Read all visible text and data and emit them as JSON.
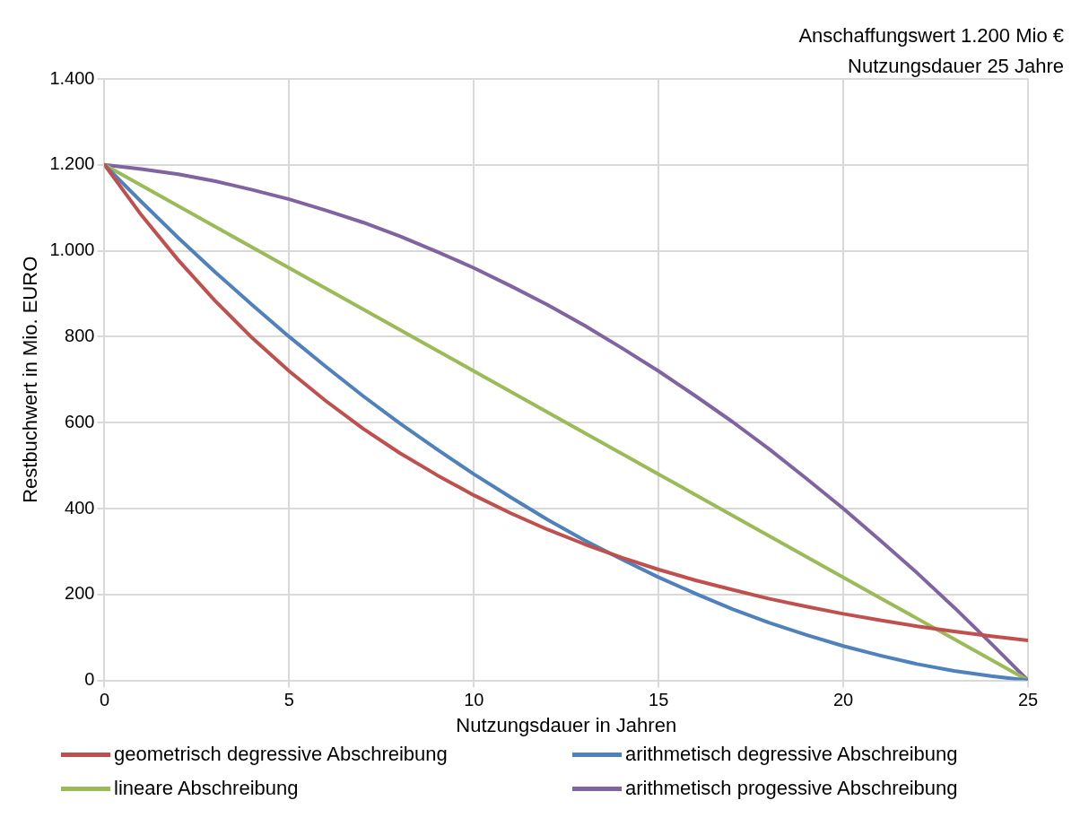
{
  "chart_data": {
    "type": "line",
    "xlabel": "Nutzungsdauer in Jahren",
    "ylabel": "Restbuchwert in Mio. EURO",
    "annotations": [
      "Anschaffungswert 1.200 Mio €",
      "Nutzungsdauer 25 Jahre"
    ],
    "x": [
      0,
      1,
      2,
      3,
      4,
      5,
      6,
      7,
      8,
      9,
      10,
      11,
      12,
      13,
      14,
      15,
      16,
      17,
      18,
      19,
      20,
      21,
      22,
      23,
      24,
      25
    ],
    "series": [
      {
        "name": "geometrisch degressive Abschreibung",
        "color": "#c0504d",
        "values": [
          1200,
          1083,
          978,
          883,
          797,
          720,
          650,
          586,
          529,
          478,
          431,
          389,
          351,
          317,
          286,
          258,
          233,
          211,
          190,
          172,
          155,
          140,
          126,
          114,
          103,
          93
        ]
      },
      {
        "name": "arithmetisch degressive Abschreibung",
        "color": "#4f81bd",
        "values": [
          1200,
          1114,
          1030,
          950,
          874,
          800,
          730,
          662,
          598,
          538,
          480,
          426,
          374,
          326,
          282,
          240,
          202,
          166,
          134,
          106,
          80,
          58,
          38,
          22,
          10,
          0
        ]
      },
      {
        "name": "lineare Abschreibung",
        "color": "#9bbb59",
        "values": [
          1200,
          1152,
          1104,
          1056,
          1008,
          960,
          912,
          864,
          816,
          768,
          720,
          672,
          624,
          576,
          528,
          480,
          432,
          384,
          336,
          288,
          240,
          192,
          144,
          96,
          48,
          0
        ]
      },
      {
        "name": "arithmetisch progessive Abschreibung",
        "color": "#8064a2",
        "values": [
          1200,
          1190,
          1178,
          1162,
          1142,
          1120,
          1094,
          1066,
          1034,
          998,
          960,
          918,
          874,
          826,
          774,
          720,
          662,
          602,
          538,
          470,
          400,
          326,
          250,
          170,
          86,
          0
        ]
      }
    ],
    "xlim": [
      0,
      25
    ],
    "xticks": [
      0,
      5,
      10,
      15,
      20,
      25
    ],
    "ylim": [
      0,
      1400
    ],
    "yticks": [
      0,
      {
        "value": 200,
        "label": "200"
      },
      {
        "value": 400,
        "label": "400"
      },
      {
        "value": 600,
        "label": "600"
      },
      {
        "value": 800,
        "label": "800"
      },
      {
        "value": 1000,
        "label": "1.000"
      },
      {
        "value": 1200,
        "label": "1.200"
      },
      {
        "value": 1400,
        "label": "1.400"
      }
    ],
    "grid": true,
    "legend": "bottom",
    "marker": "none",
    "line_style": "solid"
  }
}
